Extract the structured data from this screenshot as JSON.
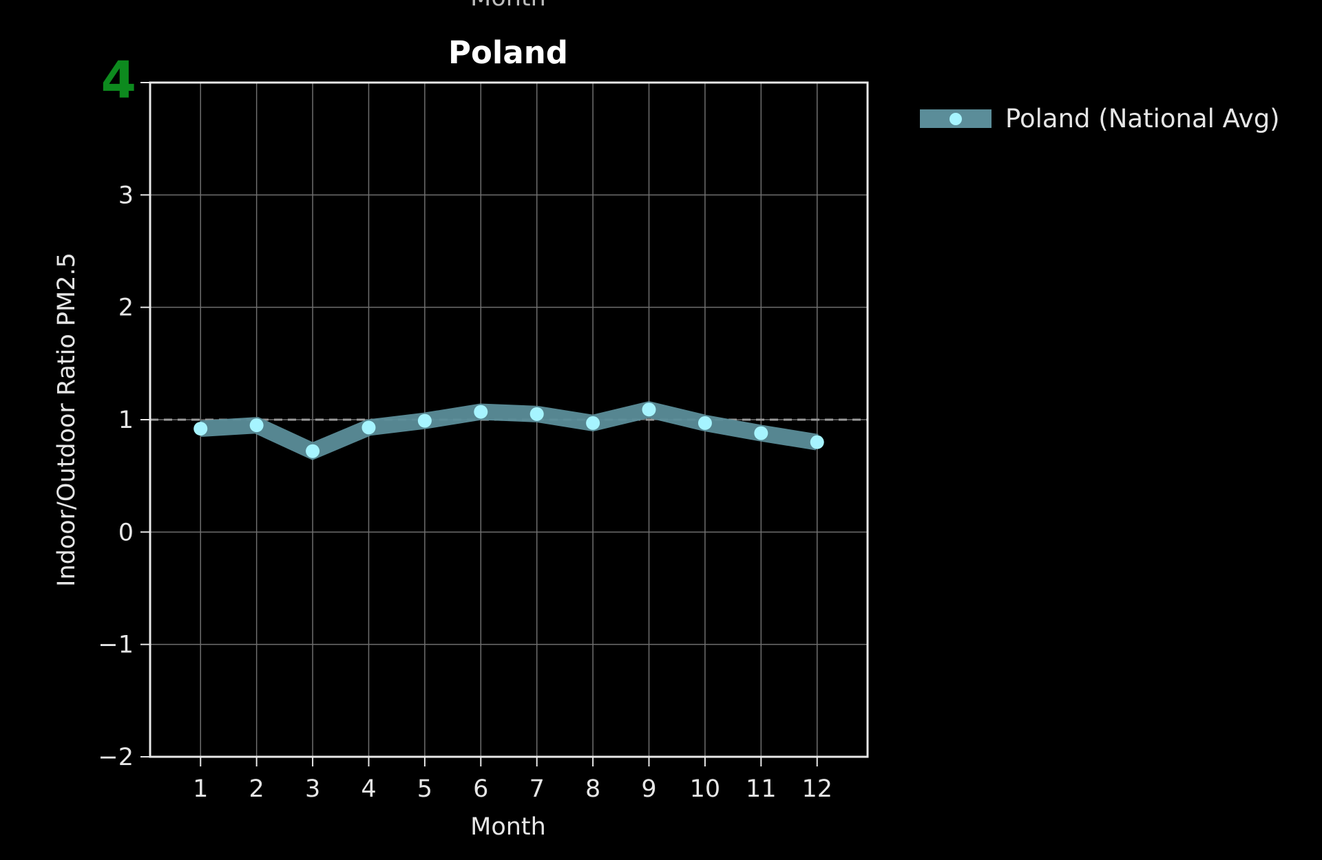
{
  "top_clipped_label": "Month",
  "chart_data": {
    "type": "line",
    "title": "Poland",
    "xlabel": "Month",
    "ylabel": "Indoor/Outdoor Ratio PM2.5",
    "x": [
      1,
      2,
      3,
      4,
      5,
      6,
      7,
      8,
      9,
      10,
      11,
      12
    ],
    "x_tick_labels": [
      "1",
      "2",
      "3",
      "4",
      "5",
      "6",
      "7",
      "8",
      "9",
      "10",
      "11",
      "12"
    ],
    "y_ticks": [
      -2,
      -1,
      0,
      1,
      2,
      3,
      4
    ],
    "y_tick_labels": [
      "−2",
      "−1",
      "0",
      "1",
      "2",
      "3",
      "4"
    ],
    "ylim": [
      -2,
      4
    ],
    "xlim": [
      0.1,
      12.9
    ],
    "grid": true,
    "reference_line": {
      "y": 1,
      "style": "dashed",
      "color": "#9a9a9a"
    },
    "series": [
      {
        "name": "Poland (National Avg)",
        "values": [
          0.92,
          0.95,
          0.72,
          0.93,
          0.99,
          1.07,
          1.05,
          0.97,
          1.09,
          0.97,
          0.88,
          0.8
        ],
        "line_color": "#5b8d99",
        "marker_color": "#a6f4ff"
      }
    ],
    "legend_placement": "outside-top-right",
    "highlight_tick": {
      "value": 4,
      "color": "#0d8a1e"
    }
  }
}
